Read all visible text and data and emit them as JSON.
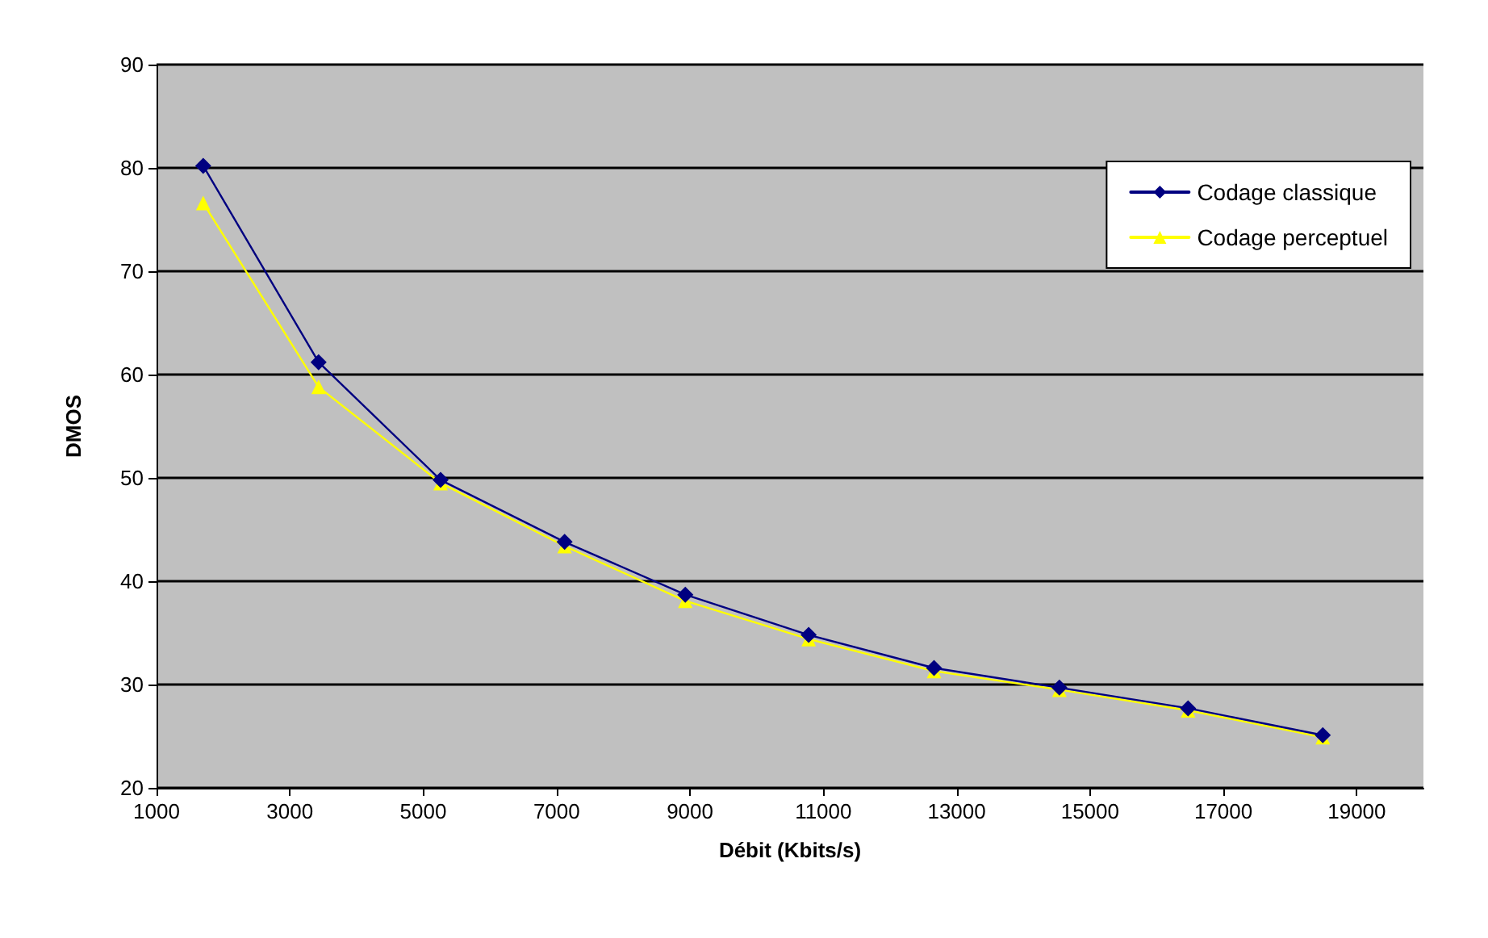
{
  "chart_data": {
    "type": "line",
    "xlabel": "Débit (Kbits/s)",
    "ylabel": "DMOS",
    "x": [
      1700,
      3430,
      5260,
      7120,
      8930,
      10780,
      12660,
      14540,
      16470,
      18490
    ],
    "series": [
      {
        "name": "Codage classique",
        "color": "#000080",
        "marker": "diamond",
        "values": [
          80.2,
          61.2,
          49.8,
          43.8,
          38.7,
          34.8,
          31.6,
          29.7,
          27.7,
          25.1
        ]
      },
      {
        "name": "Codage perceptuel",
        "color": "#ffff00",
        "marker": "triangle",
        "values": [
          76.6,
          58.8,
          49.5,
          43.4,
          38.1,
          34.4,
          31.3,
          29.5,
          27.5,
          24.9
        ]
      }
    ],
    "xlim": [
      1000,
      20000
    ],
    "xticks": [
      1000,
      3000,
      5000,
      7000,
      9000,
      11000,
      13000,
      15000,
      17000,
      19000
    ],
    "ylim": [
      20,
      90
    ],
    "yticks": [
      20,
      30,
      40,
      50,
      60,
      70,
      80,
      90
    ],
    "grid": "y",
    "legend": "top right",
    "line_style": "solid"
  }
}
